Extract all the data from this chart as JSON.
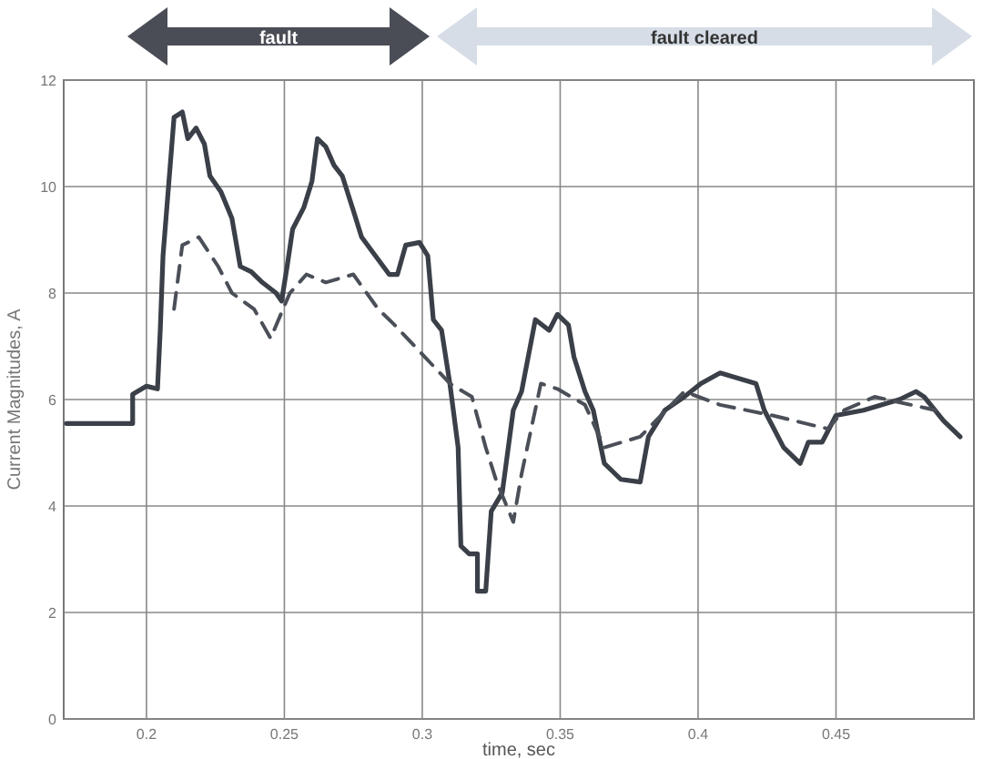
{
  "chart_data": {
    "type": "line",
    "xlabel": "time, sec",
    "ylabel": "Current Magnitudes, A",
    "annotations": [
      "fault",
      "fault cleared"
    ],
    "xlim": [
      0.17,
      0.5
    ],
    "ylim": [
      0,
      12
    ],
    "xticks": [
      0.2,
      0.25,
      0.3,
      0.35,
      0.4,
      0.45
    ],
    "yticks": [
      0,
      2,
      4,
      6,
      8,
      10,
      12
    ],
    "grid": true,
    "series": [
      {
        "color": "#3a3f48",
        "line_style": "solid",
        "x": [
          0.171,
          0.195,
          0.195,
          0.2,
          0.204,
          0.205,
          0.206,
          0.21,
          0.213,
          0.215,
          0.218,
          0.221,
          0.223,
          0.227,
          0.231,
          0.234,
          0.238,
          0.242,
          0.247,
          0.249,
          0.251,
          0.253,
          0.257,
          0.26,
          0.262,
          0.265,
          0.268,
          0.271,
          0.275,
          0.278,
          0.283,
          0.288,
          0.291,
          0.294,
          0.299,
          0.302,
          0.304,
          0.307,
          0.31,
          0.313,
          0.314,
          0.317,
          0.32,
          0.32,
          0.323,
          0.325,
          0.329,
          0.333,
          0.336,
          0.341,
          0.346,
          0.349,
          0.353,
          0.355,
          0.359,
          0.362,
          0.366,
          0.372,
          0.379,
          0.382,
          0.388,
          0.395,
          0.401,
          0.408,
          0.421,
          0.424,
          0.431,
          0.437,
          0.44,
          0.445,
          0.45,
          0.46,
          0.473,
          0.479,
          0.482,
          0.489,
          0.495
        ],
        "values": [
          5.55,
          5.55,
          6.1,
          6.25,
          6.2,
          7.3,
          8.7,
          11.3,
          11.4,
          10.9,
          11.1,
          10.8,
          10.2,
          9.9,
          9.4,
          8.5,
          8.4,
          8.2,
          8.0,
          7.85,
          8.5,
          9.2,
          9.6,
          10.1,
          10.9,
          10.75,
          10.4,
          10.2,
          9.55,
          9.05,
          8.7,
          8.35,
          8.35,
          8.9,
          8.95,
          8.7,
          7.5,
          7.3,
          6.3,
          5.1,
          3.25,
          3.1,
          3.1,
          2.4,
          2.4,
          3.9,
          4.25,
          5.8,
          6.15,
          7.5,
          7.3,
          7.6,
          7.4,
          6.8,
          6.15,
          5.8,
          4.8,
          4.5,
          4.45,
          5.3,
          5.8,
          6.05,
          6.3,
          6.5,
          6.3,
          5.8,
          5.1,
          4.8,
          5.2,
          5.2,
          5.7,
          5.8,
          6.0,
          6.15,
          6.05,
          5.6,
          5.3
        ]
      },
      {
        "color": "#4a4f58",
        "line_style": "dashed",
        "x": [
          0.21,
          0.213,
          0.219,
          0.226,
          0.231,
          0.239,
          0.245,
          0.252,
          0.258,
          0.265,
          0.275,
          0.284,
          0.29,
          0.31,
          0.318,
          0.323,
          0.327,
          0.333,
          0.336,
          0.343,
          0.349,
          0.359,
          0.366,
          0.379,
          0.395,
          0.408,
          0.427,
          0.447,
          0.453,
          0.464,
          0.486
        ],
        "values": [
          7.7,
          8.9,
          9.05,
          8.5,
          8.0,
          7.7,
          7.15,
          8.0,
          8.35,
          8.2,
          8.35,
          7.7,
          7.4,
          6.3,
          6.05,
          5.1,
          4.45,
          3.7,
          4.6,
          6.3,
          6.2,
          5.9,
          5.1,
          5.3,
          6.15,
          5.9,
          5.7,
          5.45,
          5.8,
          6.05,
          5.8
        ]
      }
    ]
  }
}
